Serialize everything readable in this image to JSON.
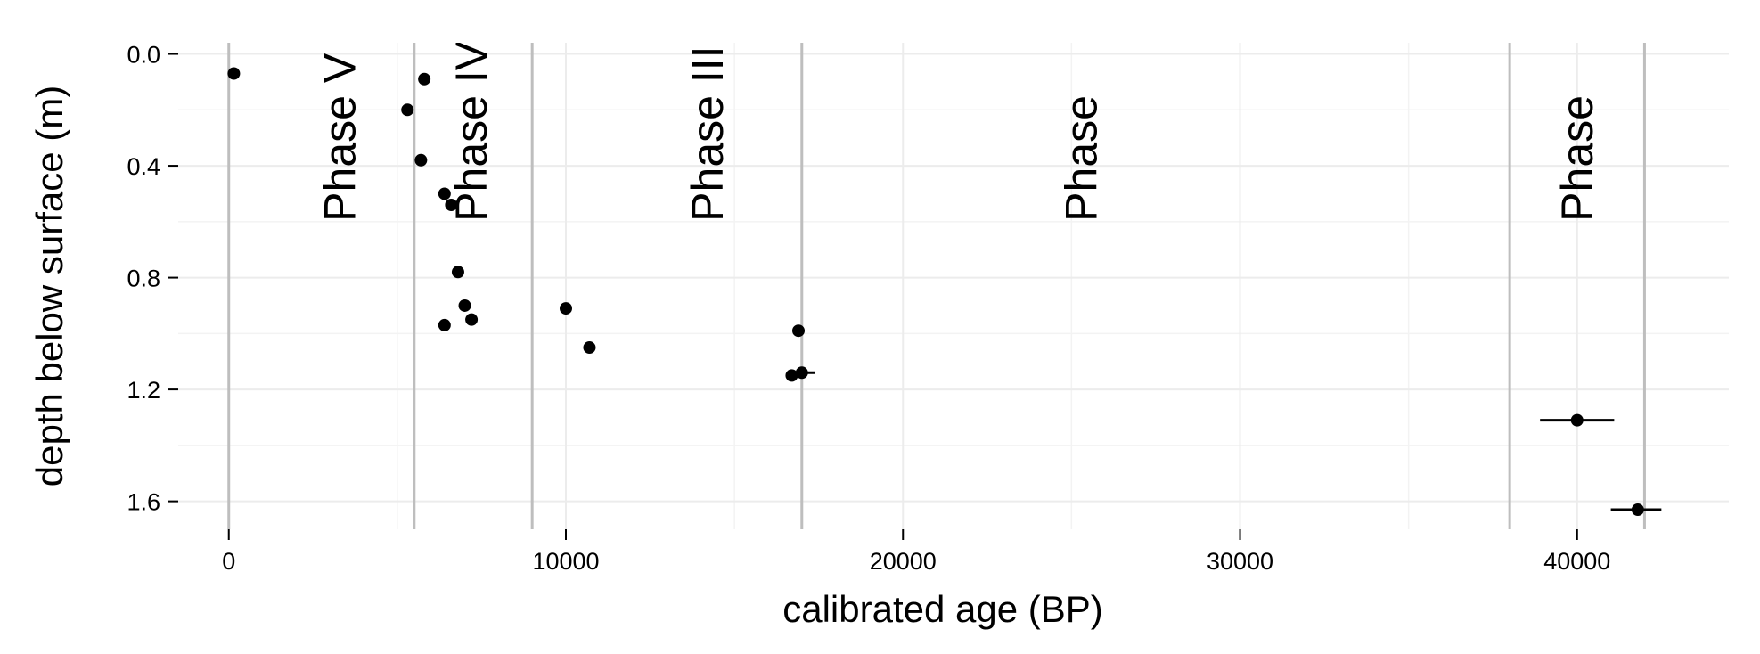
{
  "chart_data": {
    "type": "scatter",
    "title": "",
    "xlabel": "calibrated age (BP)",
    "ylabel": "depth below surface (m)",
    "xlim": [
      -1500,
      44500
    ],
    "ylim": [
      1.7,
      -0.04
    ],
    "y_reversed": true,
    "grid": true,
    "legend": "none",
    "x_ticks": [
      0,
      10000,
      20000,
      30000,
      40000
    ],
    "x_tick_labels": [
      "0",
      "10000",
      "20000",
      "30000",
      "40000"
    ],
    "y_ticks": [
      0.0,
      0.4,
      0.8,
      1.2,
      1.6
    ],
    "y_tick_labels": [
      "0.0",
      "0.4",
      "0.8",
      "1.2",
      "1.6"
    ],
    "phase_boundaries": [
      0,
      5500,
      9000,
      17000,
      38000,
      42000
    ],
    "phase_labels": [
      {
        "text": "Phase V",
        "x": 3300,
        "y": 0.6
      },
      {
        "text": "Phase IV",
        "x": 7200,
        "y": 0.6
      },
      {
        "text": "Phase III",
        "x": 14200,
        "y": 0.6
      },
      {
        "text": "Phase",
        "x": 25300,
        "y": 0.6
      },
      {
        "text": "Phase",
        "x": 40000,
        "y": 0.6
      }
    ],
    "points": [
      {
        "x": 150,
        "y": 0.07
      },
      {
        "x": 5300,
        "y": 0.2
      },
      {
        "x": 5800,
        "y": 0.09
      },
      {
        "x": 5700,
        "y": 0.38
      },
      {
        "x": 6400,
        "y": 0.5
      },
      {
        "x": 6600,
        "y": 0.54
      },
      {
        "x": 6800,
        "y": 0.78
      },
      {
        "x": 7000,
        "y": 0.9
      },
      {
        "x": 7200,
        "y": 0.95
      },
      {
        "x": 6400,
        "y": 0.97
      },
      {
        "x": 10000,
        "y": 0.91
      },
      {
        "x": 10700,
        "y": 1.05
      },
      {
        "x": 16900,
        "y": 0.99
      },
      {
        "x": 16700,
        "y": 1.15,
        "xerr": [
          16700,
          16900
        ]
      },
      {
        "x": 17000,
        "y": 1.14,
        "xerr": [
          16900,
          17400
        ]
      },
      {
        "x": 40000,
        "y": 1.31,
        "xerr": [
          38900,
          41100
        ]
      },
      {
        "x": 41800,
        "y": 1.63,
        "xerr": [
          41000,
          42500
        ]
      }
    ]
  }
}
